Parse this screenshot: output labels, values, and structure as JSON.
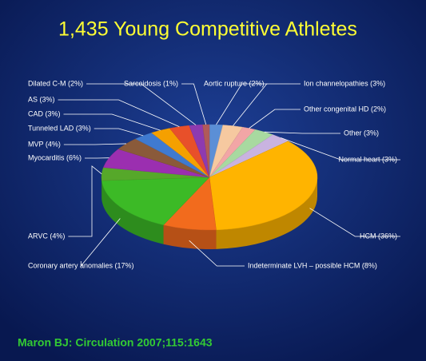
{
  "chart_data": {
    "type": "pie",
    "title": "1,435 Young Competitive Athletes",
    "source": "Maron BJ: Circulation 2007;115:1643",
    "categories": [
      "Aortic rupture (2%)",
      "Ion channelopathies (3%)",
      "Other congenital HD (2%)",
      "Other (3%)",
      "Normal heart (3%)",
      "HCM (36%)",
      "Indeterminate LVH – possible HCM (8%)",
      "Coronary artery  anomalies (17%)",
      "ARVC (4%)",
      "Myocarditis (6%)",
      "MVP (4%)",
      "Tunneled LAD (3%)",
      "CAD (3%)",
      "AS (3%)",
      "Dilated C-M (2%)",
      "Sarcoidosis (1%)"
    ],
    "values": [
      2,
      3,
      2,
      3,
      3,
      36,
      8,
      17,
      4,
      6,
      4,
      3,
      3,
      3,
      2,
      1
    ],
    "colors": [
      "#5b8fd6",
      "#f6c9a0",
      "#f2a6a6",
      "#a8d9a0",
      "#c9b3e0",
      "#ffb400",
      "#f26b1d",
      "#3cba26",
      "#56a82a",
      "#9b2fb0",
      "#8a5a3a",
      "#3f7ad0",
      "#f5a000",
      "#e8502a",
      "#8e3ab0",
      "#b05a5a"
    ]
  }
}
